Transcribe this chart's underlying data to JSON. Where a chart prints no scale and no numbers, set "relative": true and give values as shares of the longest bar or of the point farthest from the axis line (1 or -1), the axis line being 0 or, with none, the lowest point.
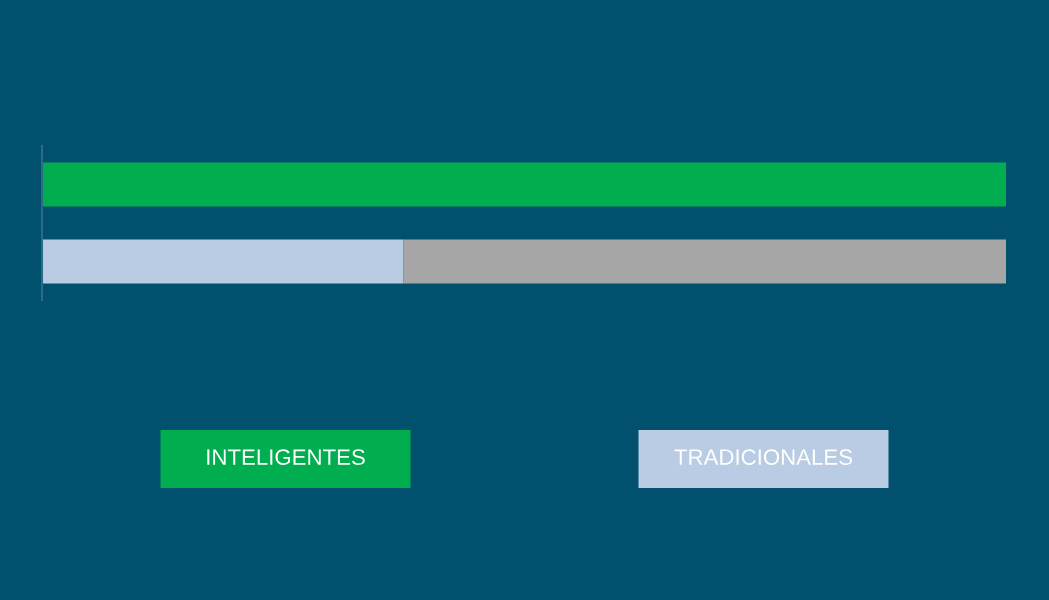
{
  "chart_data": {
    "type": "bar",
    "orientation": "horizontal",
    "stacked": true,
    "relative": true,
    "categories": [
      null,
      null
    ],
    "series": [
      {
        "name": "INTELIGENTES",
        "color": "#00ae4f",
        "values": [
          1,
          null
        ]
      },
      {
        "name": "TRADICIONALES",
        "color": "#b9cce4",
        "values": [
          null,
          0.375
        ]
      },
      {
        "color": "#a6a6a6",
        "values": [
          null,
          0.625
        ]
      }
    ],
    "legend": "bottom"
  }
}
